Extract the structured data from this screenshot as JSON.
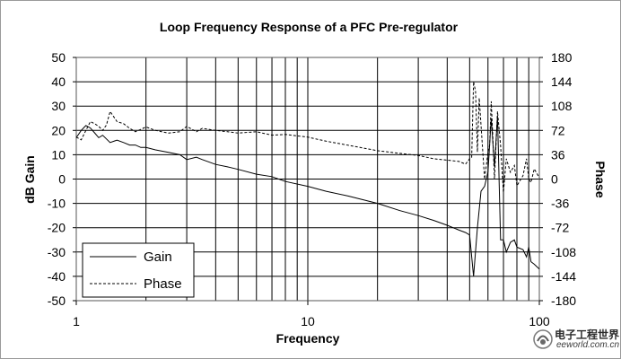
{
  "chart_data": {
    "type": "line",
    "title": "Loop Frequency Response of a PFC Pre-regulator",
    "xlabel": "Frequency",
    "ylabel": "dB Gain",
    "y2label": "Phase",
    "xscale": "log",
    "xlim": [
      1,
      100
    ],
    "ylim": [
      -50,
      50
    ],
    "y2lim": [
      -180,
      180
    ],
    "xticks": [
      1,
      10,
      100
    ],
    "yticks": [
      50,
      40,
      30,
      20,
      10,
      0,
      -10,
      -20,
      -30,
      -40,
      -50
    ],
    "y2ticks": [
      180,
      144,
      108,
      72,
      36,
      0,
      -36,
      -72,
      -108,
      -144,
      -180
    ],
    "grid": true,
    "legend_position": "bottom-left",
    "series": [
      {
        "name": "Gain",
        "axis": "left",
        "style": "solid",
        "color": "#000000",
        "x": [
          1,
          1.05,
          1.1,
          1.15,
          1.2,
          1.25,
          1.3,
          1.4,
          1.5,
          1.6,
          1.7,
          1.8,
          1.9,
          2,
          2.2,
          2.5,
          2.8,
          3,
          3.3,
          3.5,
          4,
          4.5,
          5,
          6,
          7,
          8,
          10,
          12,
          15,
          20,
          25,
          30,
          35,
          40,
          45,
          48,
          50,
          52,
          54,
          56,
          58,
          60,
          62,
          64,
          66,
          68,
          70,
          72,
          75,
          78,
          80,
          85,
          88,
          90,
          92,
          95,
          100
        ],
        "y": [
          17,
          20,
          22,
          21,
          19,
          17,
          18,
          15,
          16,
          15,
          14,
          14,
          13,
          13,
          12,
          11,
          10,
          8,
          9,
          8,
          6,
          5,
          4,
          2,
          1,
          -1,
          -3,
          -5,
          -7,
          -10,
          -13,
          -15,
          -17,
          -19,
          -21,
          -22,
          -23,
          -40,
          -20,
          -5,
          -3,
          3,
          25,
          5,
          26,
          -25,
          -25,
          -30,
          -26,
          -25,
          -28,
          -29,
          -32,
          -28,
          -34,
          -35,
          -37
        ]
      },
      {
        "name": "Phase",
        "axis": "right",
        "style": "dashed",
        "color": "#000000",
        "x": [
          1,
          1.05,
          1.1,
          1.15,
          1.2,
          1.25,
          1.3,
          1.35,
          1.4,
          1.5,
          1.6,
          1.7,
          1.8,
          2,
          2.2,
          2.5,
          2.8,
          3,
          3.3,
          3.5,
          4,
          4.5,
          5,
          6,
          7,
          8,
          10,
          12,
          15,
          20,
          25,
          30,
          35,
          40,
          45,
          48,
          50,
          51,
          52,
          53,
          54,
          55,
          56,
          58,
          60,
          61,
          62,
          63,
          64,
          66,
          68,
          70,
          72,
          75,
          78,
          80,
          85,
          88,
          90,
          92,
          95,
          100
        ],
        "y": [
          62,
          58,
          72,
          85,
          82,
          78,
          72,
          80,
          100,
          85,
          82,
          75,
          70,
          77,
          72,
          68,
          70,
          78,
          70,
          75,
          72,
          70,
          68,
          70,
          65,
          66,
          62,
          56,
          50,
          42,
          38,
          35,
          30,
          28,
          26,
          22,
          30,
          32,
          144,
          130,
          40,
          120,
          80,
          0,
          40,
          50,
          115,
          60,
          0,
          100,
          50,
          -20,
          30,
          10,
          20,
          -10,
          5,
          30,
          0,
          -5,
          15,
          2
        ]
      }
    ]
  },
  "watermark": {
    "text_cn": "电子工程世界",
    "text_en": "eeworld.com.cn"
  }
}
